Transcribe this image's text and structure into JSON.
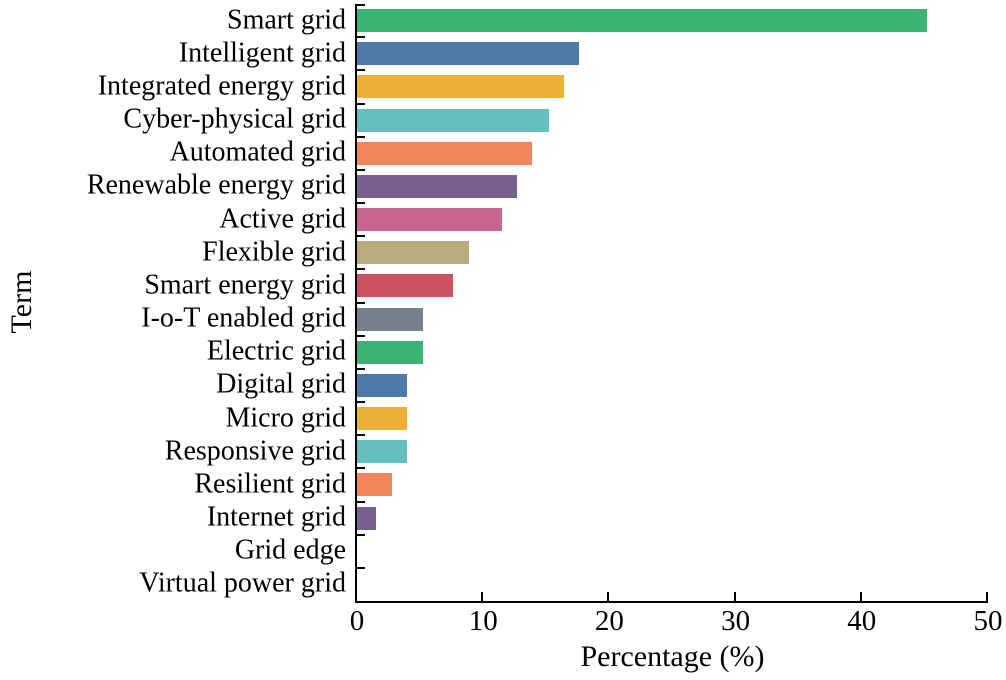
{
  "chart_data": {
    "type": "bar",
    "orientation": "horizontal",
    "title": "",
    "xlabel": "Percentage (%)",
    "ylabel": "Term",
    "xlim": [
      0,
      50
    ],
    "xticks": [
      0,
      10,
      20,
      30,
      40,
      50
    ],
    "grid": false,
    "legend": "none",
    "categories": [
      "Smart grid",
      "Intelligent grid",
      "Integrated energy grid",
      "Cyber-physical grid",
      "Automated grid",
      "Renewable energy grid",
      "Active grid",
      "Flexible grid",
      "Smart energy grid",
      "I-o-T enabled grid",
      "Electric grid",
      "Digital grid",
      "Micro grid",
      "Responsive grid",
      "Resilient grid",
      "Internet grid",
      "Grid edge",
      "Virtual power grid"
    ],
    "values": [
      45.2,
      17.6,
      16.4,
      15.2,
      13.9,
      12.7,
      11.5,
      8.9,
      7.6,
      5.2,
      5.2,
      4.0,
      4.0,
      4.0,
      2.8,
      1.5,
      0,
      0
    ],
    "bar_colors": [
      "#3ab373",
      "#4d7aa8",
      "#ecb136",
      "#64bfc1",
      "#f28559",
      "#77618f",
      "#c56590",
      "#b9ab7e",
      "#cc5162",
      "#76808d",
      "#3ab373",
      "#4d7aa8",
      "#ecb136",
      "#64bfc1",
      "#f28559",
      "#77618f",
      "#c56590",
      "#b9ab7e"
    ],
    "palette": [
      "#3ab373",
      "#4d7aa8",
      "#ecb136",
      "#64bfc1",
      "#f28559",
      "#77618f",
      "#c56590",
      "#b9ab7e",
      "#cc5162",
      "#76808d"
    ],
    "axis_color": "#000000",
    "tick_direction": "in"
  }
}
